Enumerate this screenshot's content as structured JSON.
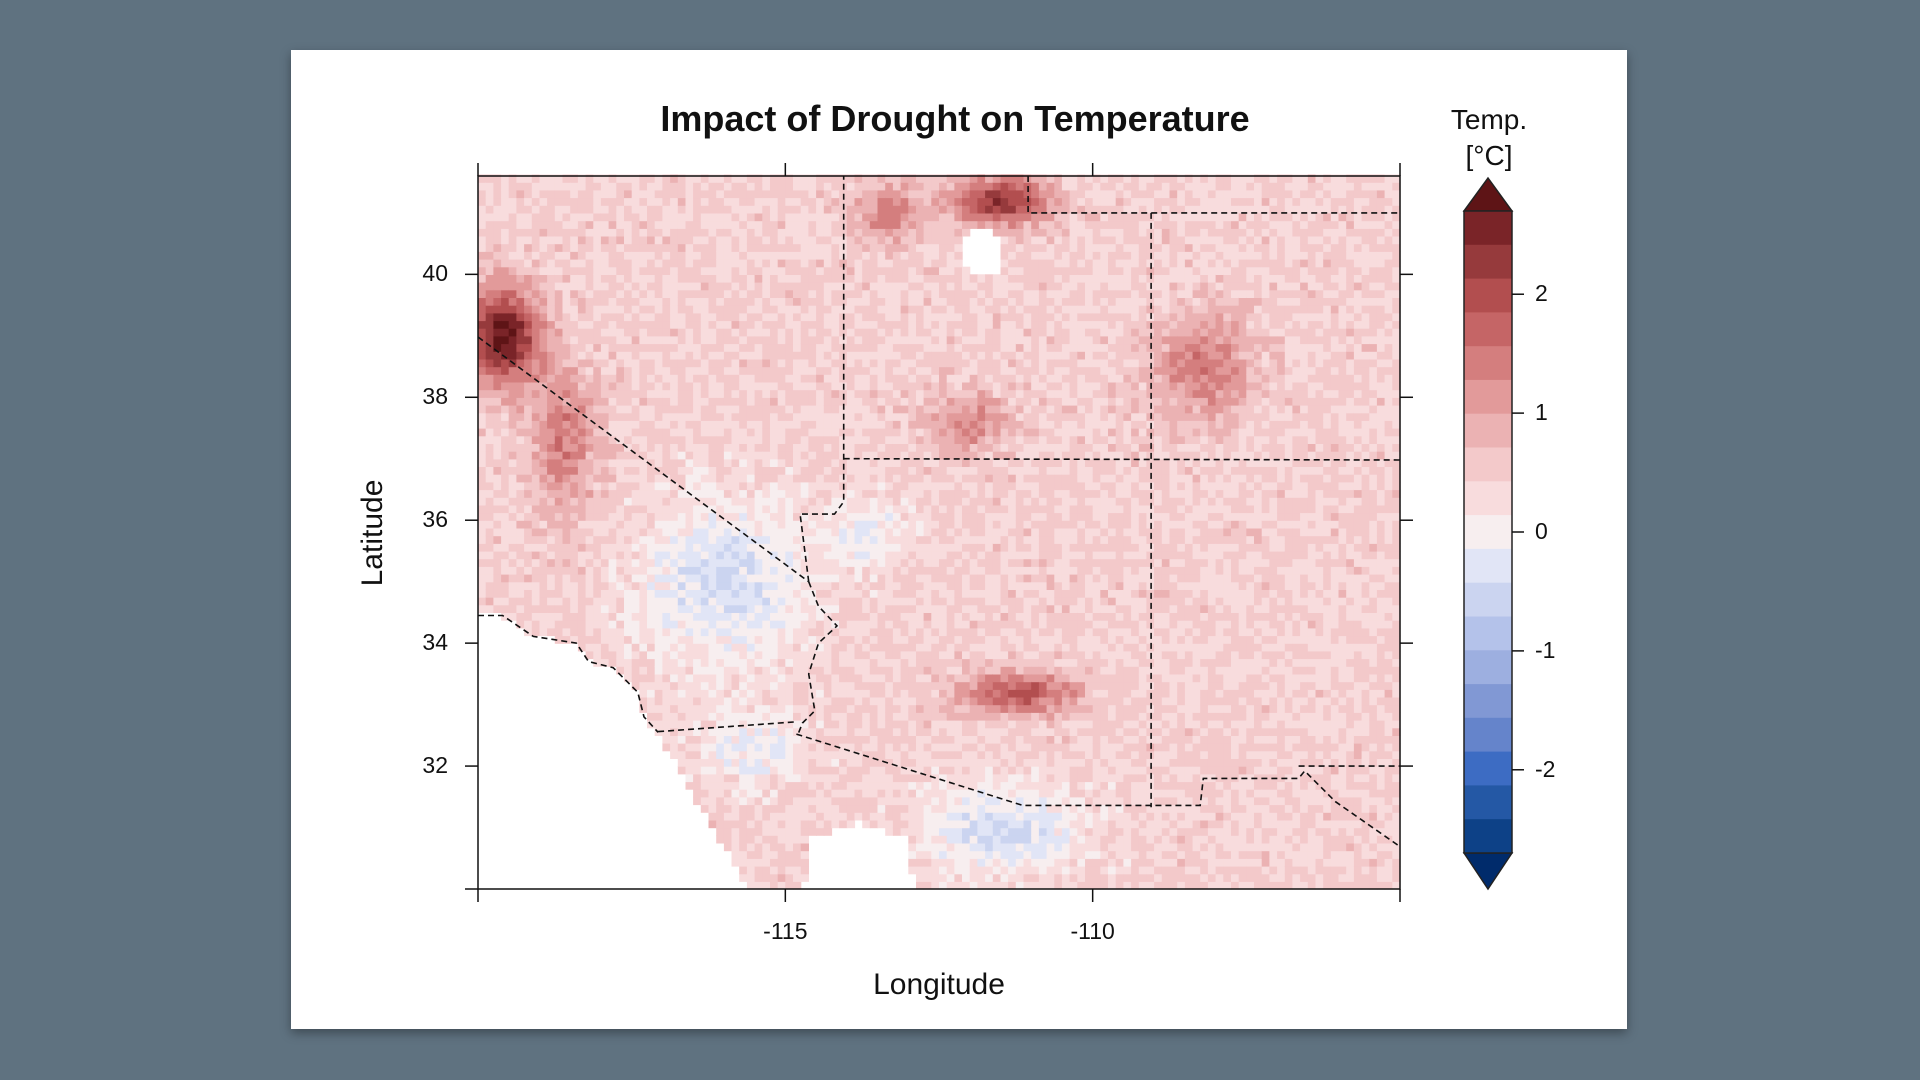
{
  "chart_data": {
    "type": "heatmap",
    "title": "Impact of Drought on Temperature",
    "xlabel": "Longitude",
    "ylabel": "Latitude",
    "xlim": [
      -120,
      -105
    ],
    "ylim": [
      30,
      41.6
    ],
    "xticks": [
      -120,
      -115,
      -110,
      -105
    ],
    "xtick_labels": [
      "",
      "-115",
      "-110",
      ""
    ],
    "yticks": [
      30,
      32,
      34,
      36,
      38,
      40
    ],
    "ytick_labels": [
      "",
      "32",
      "34",
      "36",
      "38",
      "40"
    ],
    "colorbar": {
      "title_line1": "Temp.",
      "title_line2": "[°C]",
      "ticks": [
        2,
        1,
        0,
        -1,
        -2
      ],
      "tick_labels": [
        "2",
        "1",
        "0",
        "-1",
        "-2"
      ],
      "range": [
        -2.7,
        2.7
      ],
      "extend": "both",
      "over_color": "#5e1416",
      "under_color": "#002b6b",
      "colors_top_to_bottom": [
        "#7a2428",
        "#963a3c",
        "#b24e4f",
        "#c56566",
        "#d47e7e",
        "#e29a9a",
        "#ebb2b3",
        "#f3c9ca",
        "#f8dcdd",
        "#f7eeef",
        "#e1e5f6",
        "#cbd4f0",
        "#b4c2ea",
        "#9dafe0",
        "#8198d4",
        "#6584cb",
        "#3d6cc3",
        "#2458a5",
        "#0d4187"
      ]
    },
    "grid": false
  }
}
